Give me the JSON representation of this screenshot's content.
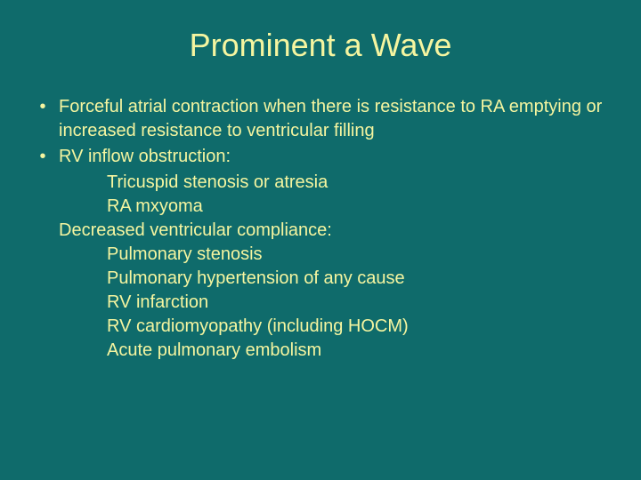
{
  "slide": {
    "title": "Prominent a Wave",
    "background_color": "#0f6b6b",
    "text_color": "#f5f5a0",
    "title_fontsize": 36,
    "body_fontsize": 20,
    "bullets": [
      {
        "text": "Forceful atrial contraction when there is resistance to RA emptying or increased resistance to ventricular filling"
      },
      {
        "text": "RV inflow obstruction:",
        "sub_indented": [
          "Tricuspid stenosis or atresia",
          "RA mxyoma"
        ],
        "sub_flush": [
          "Decreased ventricular compliance:"
        ],
        "sub_indented2": [
          "Pulmonary stenosis",
          "Pulmonary hypertension of any cause",
          "RV infarction",
          "RV cardiomyopathy (including HOCM)",
          "Acute pulmonary embolism"
        ]
      }
    ]
  }
}
